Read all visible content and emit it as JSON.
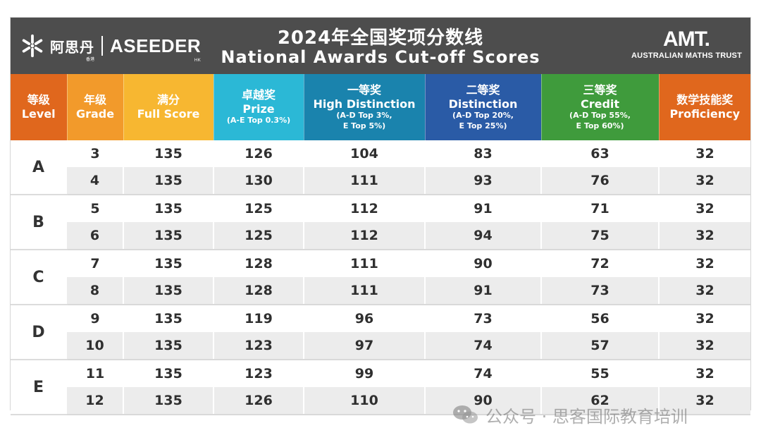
{
  "header": {
    "brand_cn": "阿思丹",
    "brand_cn_sub": "香港",
    "brand_en": "ASEEDER",
    "brand_en_sub": "HK",
    "title_cn": "2024年全国奖项分数线",
    "title_en": "National Awards Cut-off Scores",
    "amt_logo": "AMT.",
    "amt_name": "AUSTRALIAN MATHS TRUST"
  },
  "columns": [
    {
      "cn": "等级",
      "en": "Level",
      "note": "",
      "color": "#e0671d"
    },
    {
      "cn": "年级",
      "en": "Grade",
      "note": "",
      "color": "#f29a2b"
    },
    {
      "cn": "满分",
      "en": "Full Score",
      "note": "",
      "color": "#f7b731"
    },
    {
      "cn": "卓越奖",
      "en": "Prize",
      "note": "(A-E Top 0.3%)",
      "color": "#2bb8d6"
    },
    {
      "cn": "一等奖",
      "en": "High Distinction",
      "note": "(A-D Top 3%,\nE Top 5%)",
      "color": "#1a83ad"
    },
    {
      "cn": "二等奖",
      "en": "Distinction",
      "note": "(A-D Top 20%,\nE Top 25%)",
      "color": "#2a5ba6"
    },
    {
      "cn": "三等奖",
      "en": "Credit",
      "note": "(A-D Top 55%,\nE Top 60%)",
      "color": "#3f9b3c"
    },
    {
      "cn": "数学技能奖",
      "en": "Proficiency",
      "note": "",
      "color": "#e0671d"
    }
  ],
  "rows": [
    {
      "level": "A",
      "grade": "3",
      "full": "135",
      "prize": "126",
      "hd": "104",
      "dist": "83",
      "credit": "63",
      "prof": "32"
    },
    {
      "level": "A",
      "grade": "4",
      "full": "135",
      "prize": "130",
      "hd": "111",
      "dist": "93",
      "credit": "76",
      "prof": "32"
    },
    {
      "level": "B",
      "grade": "5",
      "full": "135",
      "prize": "125",
      "hd": "112",
      "dist": "91",
      "credit": "71",
      "prof": "32"
    },
    {
      "level": "B",
      "grade": "6",
      "full": "135",
      "prize": "125",
      "hd": "112",
      "dist": "94",
      "credit": "75",
      "prof": "32"
    },
    {
      "level": "C",
      "grade": "7",
      "full": "135",
      "prize": "128",
      "hd": "111",
      "dist": "90",
      "credit": "72",
      "prof": "32"
    },
    {
      "level": "C",
      "grade": "8",
      "full": "135",
      "prize": "128",
      "hd": "111",
      "dist": "91",
      "credit": "73",
      "prof": "32"
    },
    {
      "level": "D",
      "grade": "9",
      "full": "135",
      "prize": "119",
      "hd": "96",
      "dist": "73",
      "credit": "56",
      "prof": "32"
    },
    {
      "level": "D",
      "grade": "10",
      "full": "135",
      "prize": "123",
      "hd": "97",
      "dist": "74",
      "credit": "57",
      "prof": "32"
    },
    {
      "level": "E",
      "grade": "11",
      "full": "135",
      "prize": "123",
      "hd": "99",
      "dist": "74",
      "credit": "55",
      "prof": "32"
    },
    {
      "level": "E",
      "grade": "12",
      "full": "135",
      "prize": "126",
      "hd": "110",
      "dist": "90",
      "credit": "62",
      "prof": "32"
    }
  ],
  "watermark": {
    "text": "公众号 · 思客国际教育培训",
    "icon": "wechat-icon"
  },
  "colors": {
    "topbar": "#4d4d4d",
    "row_alt": "#ececec"
  }
}
